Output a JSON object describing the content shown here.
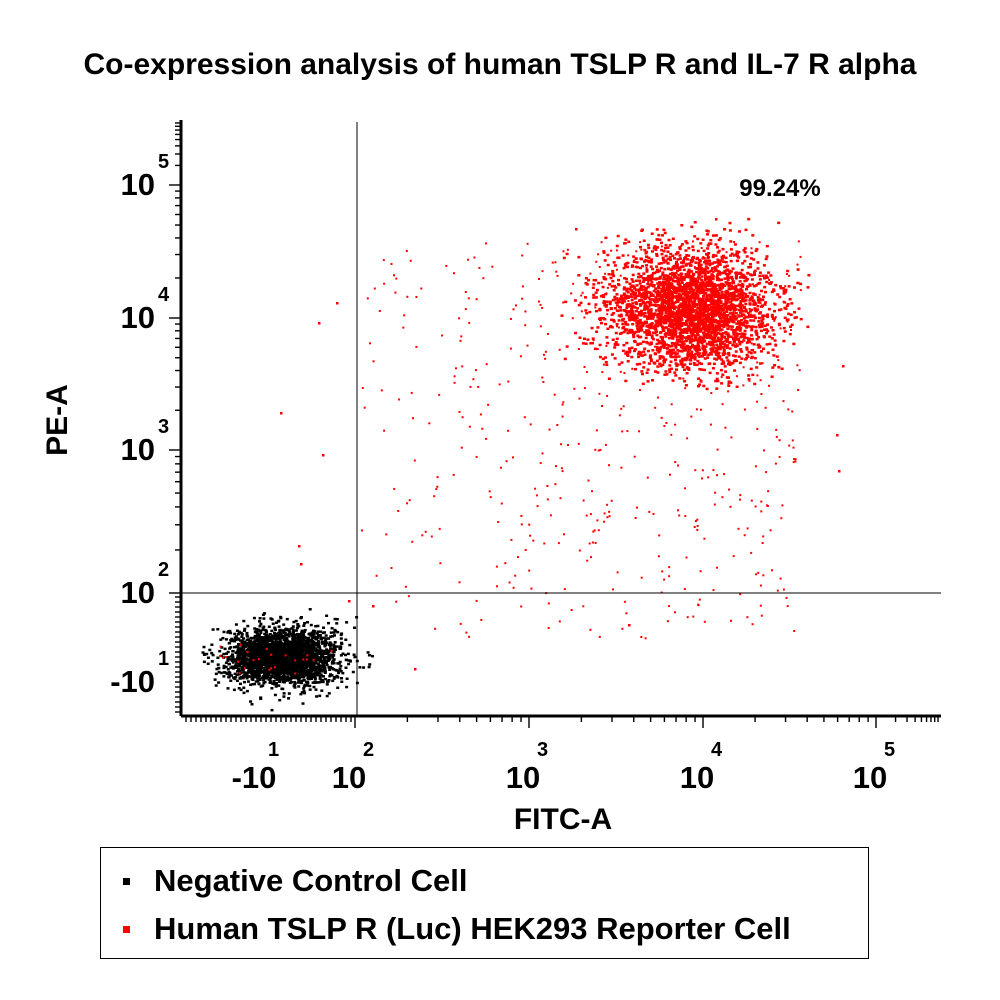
{
  "chart_data": {
    "type": "scatter",
    "title": "Co-expression analysis of human TSLP R and IL-7 R alpha",
    "xlabel": "FITC-A",
    "ylabel": "PE-A",
    "x_scale": "biexponential",
    "y_scale": "biexponential",
    "x_ticks": [
      {
        "base": "-10",
        "exp": "1"
      },
      {
        "base": "10",
        "exp": "2"
      },
      {
        "base": "10",
        "exp": "3"
      },
      {
        "base": "10",
        "exp": "4"
      },
      {
        "base": "10",
        "exp": "5"
      }
    ],
    "y_ticks": [
      {
        "base": "-10",
        "exp": "1"
      },
      {
        "base": "10",
        "exp": "2"
      },
      {
        "base": "10",
        "exp": "3"
      },
      {
        "base": "10",
        "exp": "4"
      },
      {
        "base": "10",
        "exp": "5"
      }
    ],
    "gates": {
      "x": 110,
      "y": 90
    },
    "annotations": [
      {
        "text": "99.24%",
        "quadrant": "upper-right"
      }
    ],
    "series": [
      {
        "name": "Negative Control Cell",
        "color": "#000000",
        "population": {
          "x_center": 20,
          "y_center": -10,
          "location": "double-negative (lower-left) quadrant"
        }
      },
      {
        "name": "Human TSLP R (Luc) HEK293 Reporter Cell",
        "color": "#ff0000",
        "population": {
          "x_center": 8000,
          "y_center": 12000,
          "location": "double-positive (upper-right) quadrant"
        }
      }
    ],
    "legend_position": "bottom"
  }
}
